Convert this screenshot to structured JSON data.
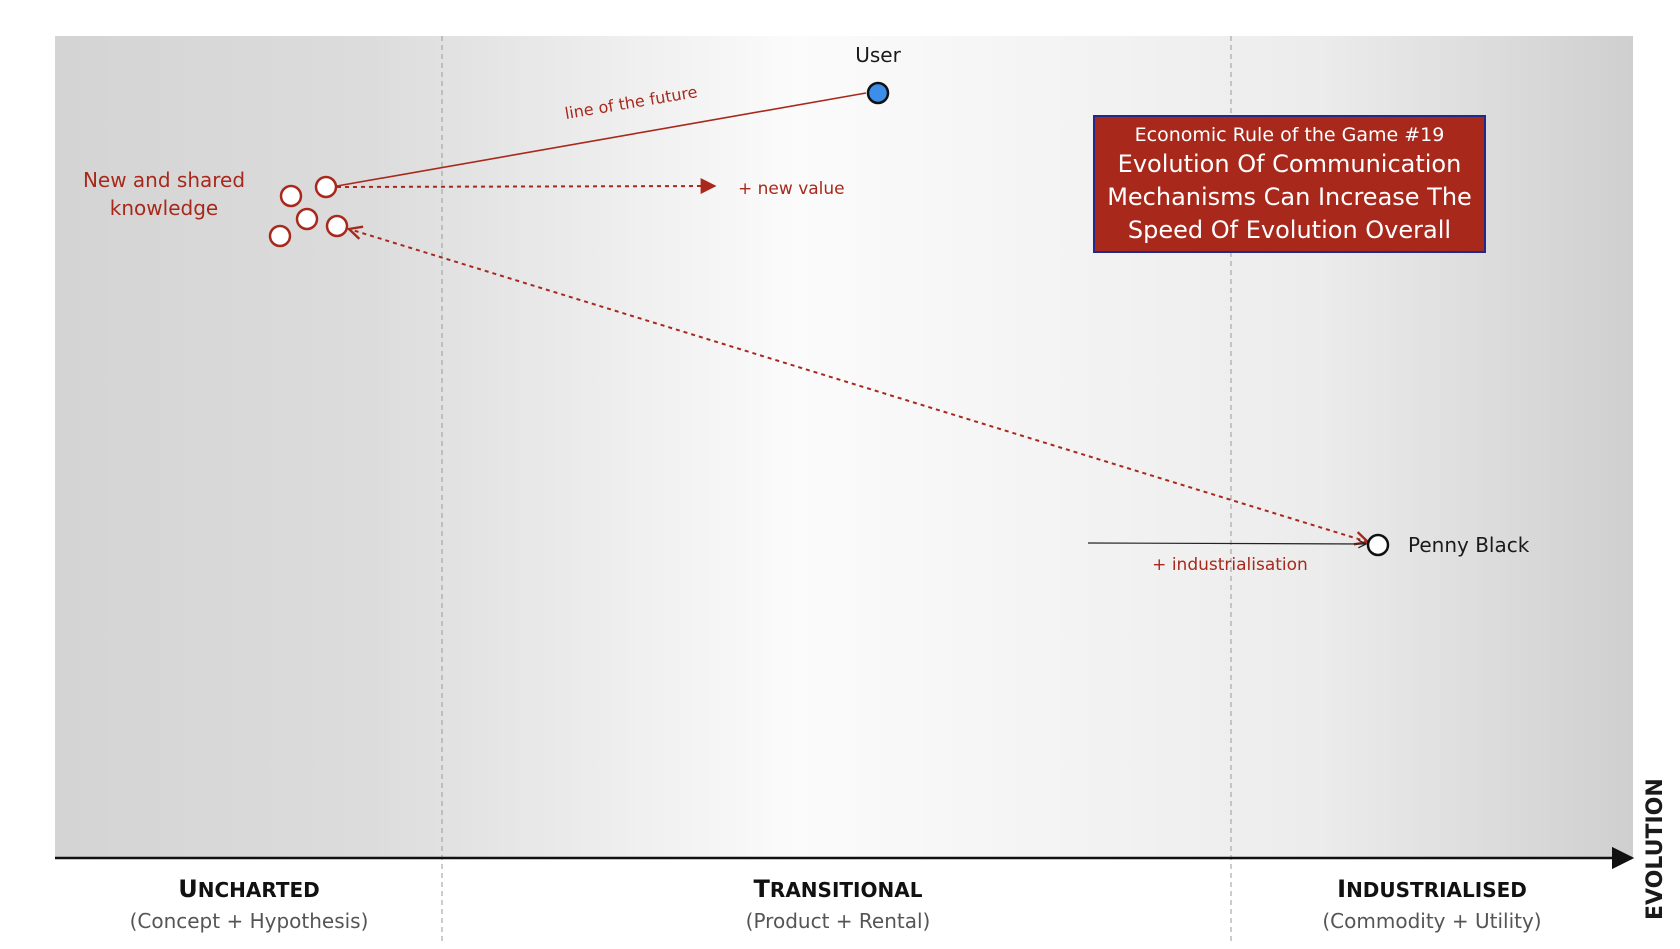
{
  "map": {
    "axis_label": "EVOLUTION",
    "stages": [
      {
        "title_first": "U",
        "title_rest": "NCHARTED",
        "subtitle": "(Concept + Hypothesis)"
      },
      {
        "title_first": "T",
        "title_rest": "RANSITIONAL",
        "subtitle": "(Product + Rental)"
      },
      {
        "title_first": "I",
        "title_rest": "NDUSTRIALISED",
        "subtitle": "(Commodity + Utility)"
      }
    ]
  },
  "nodes": {
    "user": {
      "label": "User",
      "color": "#3d8ee8"
    },
    "penny_black": {
      "label": "Penny Black"
    },
    "knowledge": {
      "label_line1": "New and shared",
      "label_line2": "knowledge",
      "color": "#a8291c"
    }
  },
  "annotations": {
    "line_of_future": "line of the future",
    "new_value": "+ new value",
    "industrialisation": "+ industrialisation"
  },
  "rule": {
    "heading": "Economic Rule of the Game #19",
    "line1": "Evolution Of Communication",
    "line2": "Mechanisms Can Increase The",
    "line3": "Speed Of Evolution Overall"
  },
  "colors": {
    "accent_red": "#a8291c",
    "rule_border": "#1f2a8c",
    "user_fill": "#3d8ee8"
  }
}
